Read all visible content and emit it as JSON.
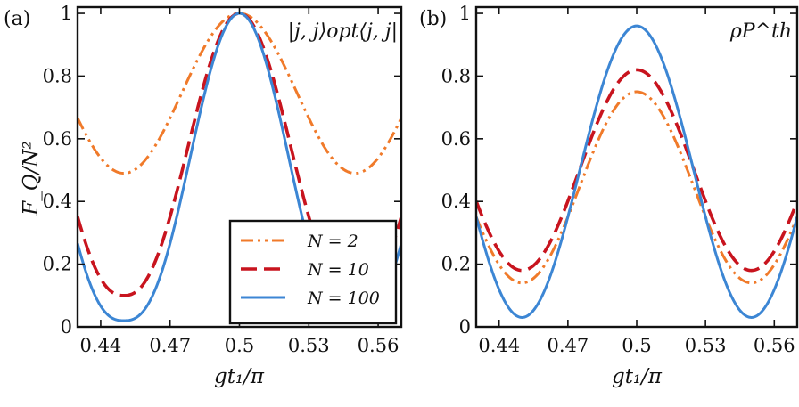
{
  "chart_data": [
    {
      "type": "line",
      "panel_tag": "(a)",
      "annotation": "|j, j⟩opt⟨j, j|",
      "xlabel": "gt₁/π",
      "ylabel": "F_Q/N²",
      "xlim": [
        0.43,
        0.57
      ],
      "ylim": [
        0,
        1.02
      ],
      "xticks": [
        0.44,
        0.47,
        0.5,
        0.53,
        0.56
      ],
      "xtick_labels": [
        "0.44",
        "0.47",
        "0.5",
        "0.53",
        "0.56"
      ],
      "yticks": [
        0,
        0.2,
        0.4,
        0.6,
        0.8,
        1
      ],
      "ytick_labels": [
        "0",
        "0.2",
        "0.4",
        "0.6",
        "0.8",
        "1"
      ],
      "legend": {
        "position": "bottom-right",
        "entries": [
          "N = 2",
          "N = 10",
          "N = 100"
        ]
      },
      "series": [
        {
          "name": "N = 2",
          "color": "#f07a2a",
          "style": "dashdotdot",
          "model": {
            "min": 0.49,
            "max": 1.0,
            "period": 0.1,
            "center": 0.5,
            "shape": 1
          },
          "key_points": [
            [
              0.43,
              0.62
            ],
            [
              0.45,
              0.49
            ],
            [
              0.5,
              1.0
            ],
            [
              0.55,
              0.49
            ],
            [
              0.57,
              0.62
            ]
          ]
        },
        {
          "name": "N = 10",
          "color": "#c8141e",
          "style": "dashed",
          "model": {
            "min": 0.1,
            "max": 1.0,
            "period": 0.1,
            "center": 0.5,
            "shape": 1.2
          },
          "key_points": [
            [
              0.43,
              0.38
            ],
            [
              0.45,
              0.1
            ],
            [
              0.5,
              1.0
            ],
            [
              0.55,
              0.1
            ],
            [
              0.57,
              0.38
            ]
          ]
        },
        {
          "name": "N = 100",
          "color": "#3c86d4",
          "style": "solid",
          "model": {
            "min": 0.02,
            "max": 1.0,
            "period": 0.1,
            "center": 0.5,
            "shape": 1.3
          },
          "key_points": [
            [
              0.43,
              0.33
            ],
            [
              0.45,
              0.02
            ],
            [
              0.5,
              1.0
            ],
            [
              0.55,
              0.02
            ],
            [
              0.57,
              0.33
            ]
          ]
        }
      ]
    },
    {
      "type": "line",
      "panel_tag": "(b)",
      "annotation": "ρP^th",
      "xlabel": "gt₁/π",
      "ylabel": "",
      "xlim": [
        0.43,
        0.57
      ],
      "ylim": [
        0,
        1.02
      ],
      "xticks": [
        0.44,
        0.47,
        0.5,
        0.53,
        0.56
      ],
      "xtick_labels": [
        "0.44",
        "0.47",
        "0.5",
        "0.53",
        "0.56"
      ],
      "yticks": [
        0,
        0.2,
        0.4,
        0.6,
        0.8,
        1
      ],
      "ytick_labels": [
        "0",
        "0.2",
        "0.4",
        "0.6",
        "0.8",
        "1"
      ],
      "series": [
        {
          "name": "N = 2",
          "color": "#f07a2a",
          "style": "dashdotdot",
          "model": {
            "min": 0.14,
            "max": 0.75,
            "period": 0.1,
            "center": 0.5,
            "shape": 1
          },
          "key_points": [
            [
              0.43,
              0.37
            ],
            [
              0.45,
              0.14
            ],
            [
              0.5,
              0.75
            ],
            [
              0.55,
              0.14
            ],
            [
              0.57,
              0.37
            ]
          ]
        },
        {
          "name": "N = 10",
          "color": "#c8141e",
          "style": "dashed",
          "model": {
            "min": 0.18,
            "max": 0.82,
            "period": 0.1,
            "center": 0.5,
            "shape": 1
          },
          "key_points": [
            [
              0.43,
              0.38
            ],
            [
              0.45,
              0.18
            ],
            [
              0.5,
              0.82
            ],
            [
              0.55,
              0.18
            ],
            [
              0.57,
              0.38
            ]
          ]
        },
        {
          "name": "N = 100",
          "color": "#3c86d4",
          "style": "solid",
          "model": {
            "min": 0.03,
            "max": 0.96,
            "period": 0.1,
            "center": 0.5,
            "shape": 1
          },
          "key_points": [
            [
              0.43,
              0.33
            ],
            [
              0.45,
              0.03
            ],
            [
              0.5,
              0.96
            ],
            [
              0.55,
              0.03
            ],
            [
              0.57,
              0.33
            ]
          ]
        }
      ]
    }
  ]
}
